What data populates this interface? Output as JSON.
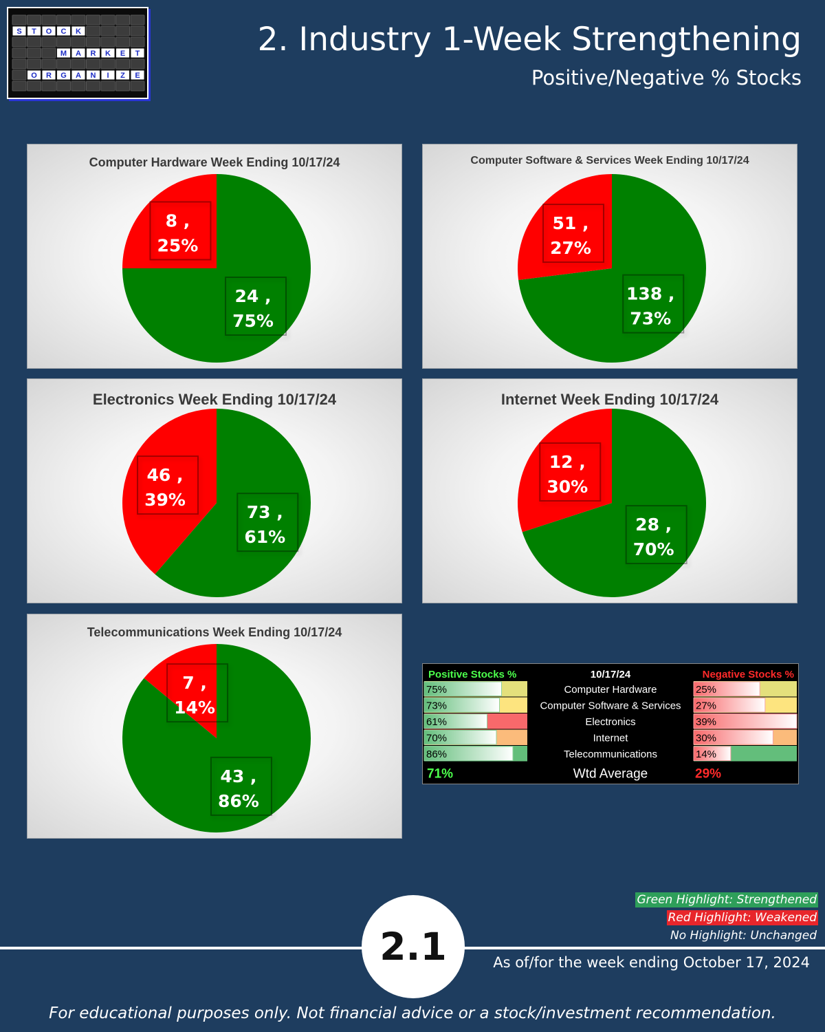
{
  "header": {
    "title": "2. Industry 1-Week Strengthening",
    "subtitle": "Positive/Negative % Stocks"
  },
  "logo": {
    "rows": [
      {
        "word": "STOCK",
        "start": 0
      },
      {
        "word": "MARKET",
        "start": 3
      },
      {
        "word": "ORGANIZER",
        "start": 1
      }
    ]
  },
  "colors": {
    "positive": "#008000",
    "negative": "#ff0000",
    "background": "#1e3d5f"
  },
  "chart_data": [
    {
      "type": "pie",
      "title": "Computer Hardware Week Ending 10/17/24",
      "slices": [
        {
          "label": "Positive",
          "value": 24,
          "pct": "75%"
        },
        {
          "label": "Negative",
          "value": 8,
          "pct": "25%"
        }
      ]
    },
    {
      "type": "pie",
      "title": "Computer Software & Services Week Ending 10/17/24",
      "slices": [
        {
          "label": "Positive",
          "value": 138,
          "pct": "73%"
        },
        {
          "label": "Negative",
          "value": 51,
          "pct": "27%"
        }
      ]
    },
    {
      "type": "pie",
      "title": "Electronics Week Ending 10/17/24",
      "slices": [
        {
          "label": "Positive",
          "value": 73,
          "pct": "61%"
        },
        {
          "label": "Negative",
          "value": 46,
          "pct": "39%"
        }
      ]
    },
    {
      "type": "pie",
      "title": "Internet Week Ending 10/17/24",
      "slices": [
        {
          "label": "Positive",
          "value": 28,
          "pct": "70%"
        },
        {
          "label": "Negative",
          "value": 12,
          "pct": "30%"
        }
      ]
    },
    {
      "type": "pie",
      "title": "Telecommunications Week Ending 10/17/24",
      "slices": [
        {
          "label": "Positive",
          "value": 43,
          "pct": "86%"
        },
        {
          "label": "Negative",
          "value": 7,
          "pct": "14%"
        }
      ]
    }
  ],
  "summary_table": {
    "headers": {
      "positive": "Positive Stocks %",
      "date": "10/17/24",
      "negative": "Negative Stocks %"
    },
    "rows": [
      {
        "industry": "Computer Hardware",
        "positive": "75%",
        "pos_value": 75,
        "negative": "25%",
        "neg_value": 25,
        "pos_highlight": "#e4e07c",
        "neg_highlight": "#e4e07c"
      },
      {
        "industry": "Computer Software & Services",
        "positive": "73%",
        "pos_value": 73,
        "negative": "27%",
        "neg_value": 27,
        "pos_highlight": "#fde47f",
        "neg_highlight": "#fde47f"
      },
      {
        "industry": "Electronics",
        "positive": "61%",
        "pos_value": 61,
        "negative": "39%",
        "neg_value": 39,
        "pos_highlight": "#f8696b",
        "neg_highlight": "#f8696b"
      },
      {
        "industry": "Internet",
        "positive": "70%",
        "pos_value": 70,
        "negative": "30%",
        "neg_value": 30,
        "pos_highlight": "#fbbb7b",
        "neg_highlight": "#fbbb7b"
      },
      {
        "industry": "Telecommunications",
        "positive": "86%",
        "pos_value": 86,
        "negative": "14%",
        "neg_value": 14,
        "pos_highlight": "#63be7b",
        "neg_highlight": "#63be7b"
      }
    ],
    "footer": {
      "positive": "71%",
      "label": "Wtd Average",
      "negative": "29%"
    }
  },
  "legend": {
    "green": "Green Highlight: Strengthened",
    "red": "Red Highlight: Weakened",
    "none": "No Highlight: Unchanged"
  },
  "badge": "2.1",
  "as_of": "As of/for the week ending October 17, 2024",
  "disclaimer": "For educational purposes only. Not financial advice or a stock/investment recommendation."
}
